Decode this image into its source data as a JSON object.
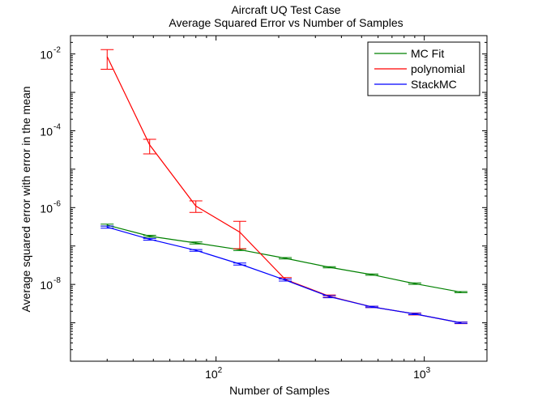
{
  "chart_data": {
    "type": "line",
    "title": "Aircraft UQ Test Case",
    "subtitle": "Average Squared Error vs Number of Samples",
    "xlabel": "Number of Samples",
    "ylabel": "Average squared error with error in the mean",
    "xscale": "log",
    "yscale": "log",
    "xlim": [
      20,
      2000
    ],
    "ylim": [
      1e-10,
      0.03
    ],
    "x_ticks": [
      {
        "value": 100,
        "base": "10",
        "exp": "2"
      },
      {
        "value": 1000,
        "base": "10",
        "exp": "3"
      }
    ],
    "y_ticks": [
      {
        "value": 1e-08,
        "base": "10",
        "exp": "-8"
      },
      {
        "value": 1e-06,
        "base": "10",
        "exp": "-6"
      },
      {
        "value": 0.0001,
        "base": "10",
        "exp": "-4"
      },
      {
        "value": 0.01,
        "base": "10",
        "exp": "-2"
      }
    ],
    "grid": false,
    "legend_position": "top-right",
    "x": [
      30,
      48,
      80,
      130,
      215,
      350,
      560,
      900,
      1500
    ],
    "series": [
      {
        "name": "MC Fit",
        "color": "#008000",
        "x": [
          30,
          48,
          80,
          130,
          215,
          350,
          560,
          900,
          1500
        ],
        "values": [
          3.5e-07,
          1.8e-07,
          1.2e-07,
          8e-08,
          4.8e-08,
          2.8e-08,
          1.8e-08,
          1.05e-08,
          6.3e-09
        ],
        "err_low": [
          3.3e-07,
          1.7e-07,
          1.13e-07,
          7.6e-08,
          4.6e-08,
          2.7e-08,
          1.73e-08,
          1e-08,
          6.1e-09
        ],
        "err_high": [
          3.7e-07,
          1.9e-07,
          1.27e-07,
          8.4e-08,
          5e-08,
          2.9e-08,
          1.87e-08,
          1.1e-08,
          6.5e-09
        ]
      },
      {
        "name": "polynomial",
        "color": "#ff0000",
        "x": [
          30,
          48,
          80,
          130,
          215,
          350,
          560,
          900,
          1500
        ],
        "values": [
          0.0085,
          4.3e-05,
          1.1e-06,
          2.3e-07,
          1.35e-08,
          4.9e-09,
          2.6e-09,
          1.7e-09,
          1e-09
        ],
        "err_low": [
          0.004,
          2.5e-05,
          7.5e-07,
          8.5e-08,
          1.22e-08,
          4.6e-09,
          2.5e-09,
          1.6e-09,
          9.5e-10
        ],
        "err_high": [
          0.013,
          6e-05,
          1.5e-06,
          4.4e-07,
          1.5e-08,
          5.3e-09,
          2.7e-09,
          1.8e-09,
          1.05e-09
        ]
      },
      {
        "name": "StackMC",
        "color": "#0000ff",
        "x": [
          30,
          48,
          80,
          130,
          215,
          350,
          560,
          900,
          1500
        ],
        "values": [
          3.1e-07,
          1.5e-07,
          7.7e-08,
          3.4e-08,
          1.3e-08,
          4.8e-09,
          2.6e-09,
          1.7e-09,
          1e-09
        ],
        "err_low": [
          2.9e-07,
          1.42e-07,
          7.3e-08,
          3.2e-08,
          1.22e-08,
          4.5e-09,
          2.5e-09,
          1.63e-09,
          9.6e-10
        ],
        "err_high": [
          3.3e-07,
          1.58e-07,
          8.1e-08,
          3.6e-08,
          1.38e-08,
          5.1e-09,
          2.7e-09,
          1.77e-09,
          1.04e-09
        ]
      }
    ]
  }
}
